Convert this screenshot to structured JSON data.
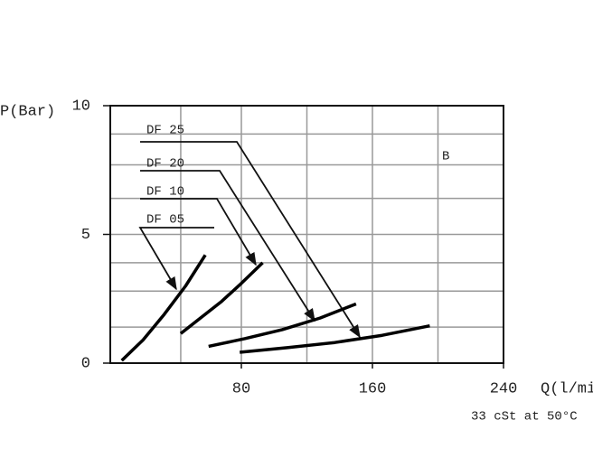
{
  "chart_data": {
    "type": "line",
    "y_label": "P(Bar)",
    "x_label": "Q(l/min)",
    "note": "33 cSt at 50°C",
    "annotation": "B",
    "xlim": [
      0,
      240
    ],
    "ylim": [
      0,
      10
    ],
    "xticks": [
      80,
      160,
      240
    ],
    "yticks": [
      0,
      5,
      10
    ],
    "xgrid": [
      43,
      80,
      120,
      160,
      200
    ],
    "ygrid": [
      1.4,
      2.8,
      3.9,
      5,
      6.4,
      7.7,
      8.9
    ],
    "color": "#000000",
    "series": [
      {
        "name": "DF 05",
        "x": [
          7,
          20,
          33,
          46,
          58
        ],
        "values": [
          0.1,
          0.9,
          1.9,
          3.0,
          4.2
        ]
      },
      {
        "name": "DF 10",
        "x": [
          43,
          55,
          68,
          80,
          93
        ],
        "values": [
          1.15,
          1.75,
          2.4,
          3.1,
          3.9
        ]
      },
      {
        "name": "DF 20",
        "x": [
          60,
          82,
          105,
          128,
          150
        ],
        "values": [
          0.65,
          0.95,
          1.3,
          1.75,
          2.3
        ]
      },
      {
        "name": "DF 25",
        "x": [
          79,
          108,
          137,
          166,
          195
        ],
        "values": [
          0.42,
          0.6,
          0.8,
          1.08,
          1.45
        ]
      }
    ]
  }
}
